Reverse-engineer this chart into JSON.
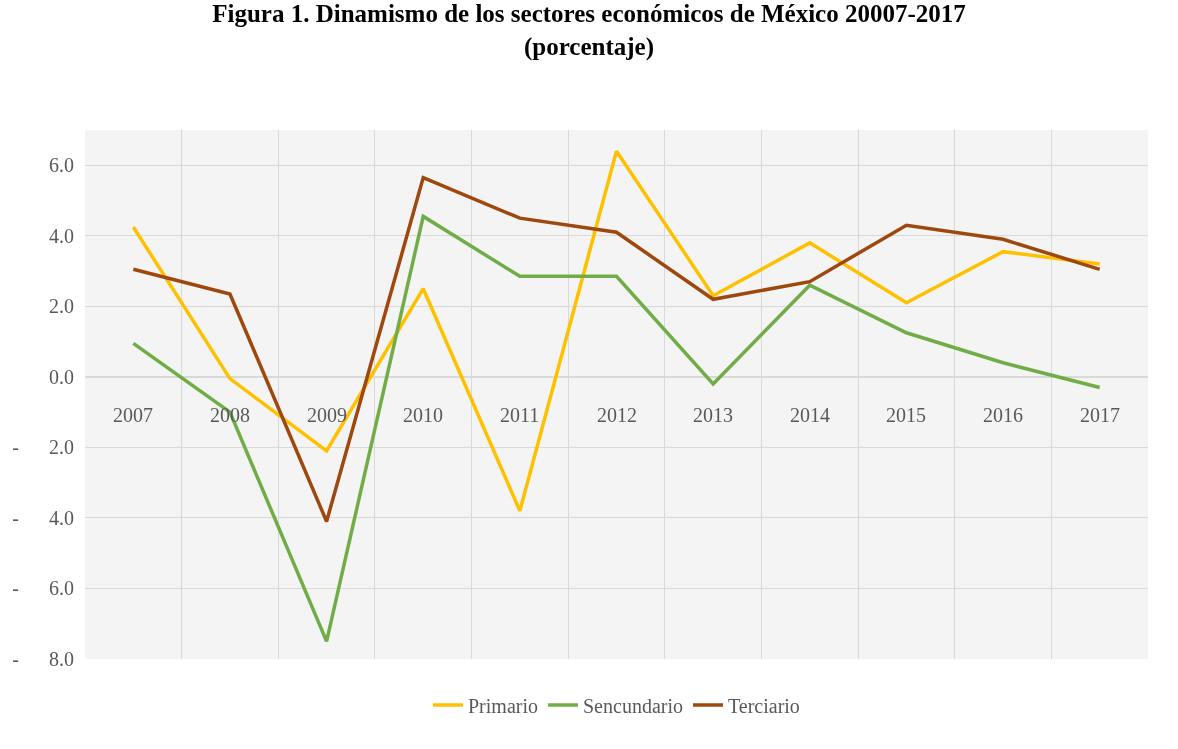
{
  "chart_data": {
    "type": "line",
    "title": "Figura 1. Dinamismo de los sectores económicos de México 20007-2017\n(porcentaje)",
    "categories": [
      "2007",
      "2008",
      "2009",
      "2010",
      "2011",
      "2012",
      "2013",
      "2014",
      "2015",
      "2016",
      "2017"
    ],
    "series": [
      {
        "name": "Primario",
        "color": "#ffc000",
        "values": [
          4.25,
          -0.05,
          -2.1,
          2.5,
          -3.8,
          6.4,
          2.3,
          3.8,
          2.1,
          3.55,
          3.2
        ]
      },
      {
        "name": "Sencundario",
        "color": "#70ad47",
        "values": [
          0.95,
          -1.0,
          -7.5,
          4.55,
          2.85,
          2.85,
          -0.2,
          2.6,
          1.25,
          0.4,
          -0.3
        ]
      },
      {
        "name": "Terciario",
        "color": "#9e480e",
        "values": [
          3.05,
          2.35,
          -4.1,
          5.65,
          4.5,
          4.1,
          2.2,
          2.7,
          4.3,
          3.9,
          3.05
        ]
      }
    ],
    "ylim": [
      -8,
      7
    ],
    "yticks": [
      {
        "value": 6,
        "label": "6.0"
      },
      {
        "value": 4,
        "label": "4.0"
      },
      {
        "value": 2,
        "label": "2.0"
      },
      {
        "value": 0,
        "label": "0.0"
      },
      {
        "value": -2,
        "label": "-      2.0"
      },
      {
        "value": -4,
        "label": "-      4.0"
      },
      {
        "value": -6,
        "label": "-      6.0"
      },
      {
        "value": -8,
        "label": "-      8.0"
      }
    ],
    "grid": true,
    "legend": "bottom",
    "marker": "none",
    "line_style": "solid"
  }
}
